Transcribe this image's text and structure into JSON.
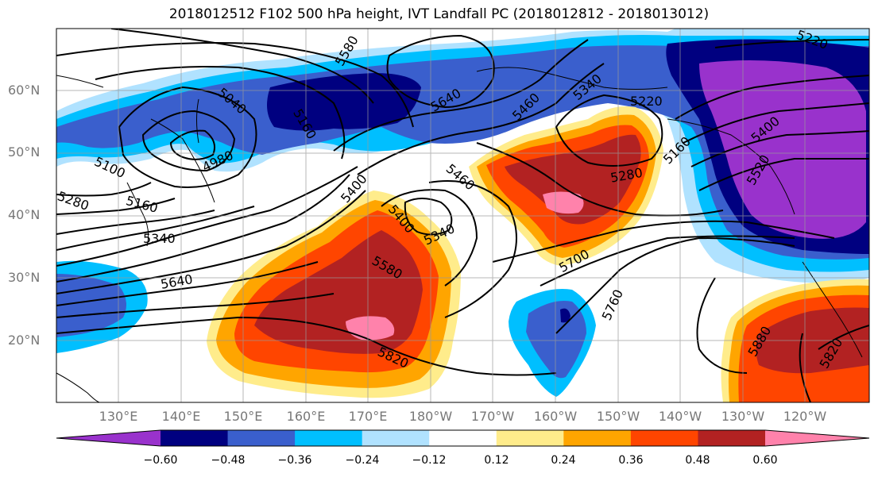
{
  "title": "2018012512 F102 500 hPa height, IVT Landfall PC (2018012812 - 2018013012)",
  "lat_labels": [
    "60°N",
    "50°N",
    "40°N",
    "30°N",
    "20°N"
  ],
  "lon_labels": [
    "130°E",
    "140°E",
    "150°E",
    "160°E",
    "170°E",
    "180°W",
    "170°W",
    "160°W",
    "150°W",
    "140°W",
    "130°W",
    "120°W"
  ],
  "contour_labels": [
    "5580",
    "5640",
    "5460",
    "5340",
    "5220",
    "5040",
    "4980",
    "5160",
    "5100",
    "5280",
    "5160",
    "5340",
    "5640",
    "5400",
    "5460",
    "5400",
    "5340",
    "5580",
    "5280",
    "5160",
    "5400",
    "5520",
    "5700",
    "5760",
    "5820",
    "5880",
    "5820",
    "5220"
  ],
  "colorbar": {
    "colors": [
      "#9932cc",
      "#000080",
      "#3a5fcd",
      "#00bfff",
      "#b0e2ff",
      "#ffffff",
      "#ffec8b",
      "#ffa500",
      "#ff4500",
      "#b22222",
      "#ff82ab"
    ],
    "tick_labels": [
      "−0.60",
      "−0.48",
      "−0.36",
      "−0.24",
      "−0.12",
      "0.12",
      "0.24",
      "0.36",
      "0.48",
      "0.60"
    ]
  }
}
